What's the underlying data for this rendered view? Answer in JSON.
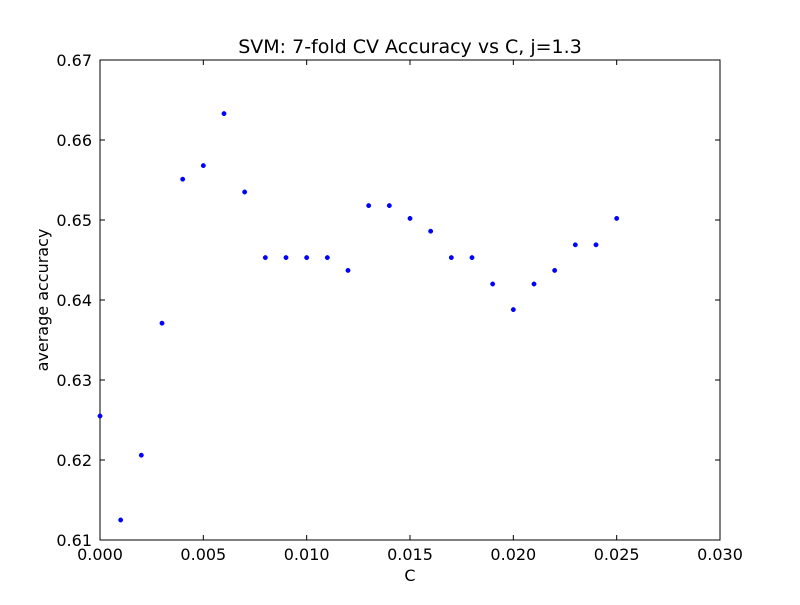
{
  "chart_data": {
    "type": "scatter",
    "title": "SVM: 7-fold CV Accuracy vs C, j=1.3",
    "xlabel": "C",
    "ylabel": "average accuracy",
    "xlim": [
      0.0,
      0.03
    ],
    "ylim": [
      0.61,
      0.67
    ],
    "x_ticks": [
      "0.000",
      "0.005",
      "0.010",
      "0.015",
      "0.020",
      "0.025",
      "0.030"
    ],
    "y_ticks": [
      "0.61",
      "0.62",
      "0.63",
      "0.64",
      "0.65",
      "0.66",
      "0.67"
    ],
    "grid": false,
    "marker_color": "#0000ff",
    "series": [
      {
        "x": [
          0.0,
          0.001,
          0.002,
          0.003,
          0.004,
          0.005,
          0.006,
          0.007,
          0.008,
          0.009,
          0.01,
          0.011,
          0.012,
          0.013,
          0.014,
          0.015,
          0.016,
          0.017,
          0.018,
          0.019,
          0.02,
          0.021,
          0.022,
          0.023,
          0.024,
          0.025
        ],
        "y": [
          0.6255,
          0.6125,
          0.6206,
          0.6371,
          0.6551,
          0.6568,
          0.6633,
          0.6535,
          0.6453,
          0.6453,
          0.6453,
          0.6453,
          0.6437,
          0.6518,
          0.6518,
          0.6502,
          0.6486,
          0.6453,
          0.6453,
          0.642,
          0.6388,
          0.642,
          0.6437,
          0.6469,
          0.6469,
          0.6502
        ]
      }
    ]
  }
}
